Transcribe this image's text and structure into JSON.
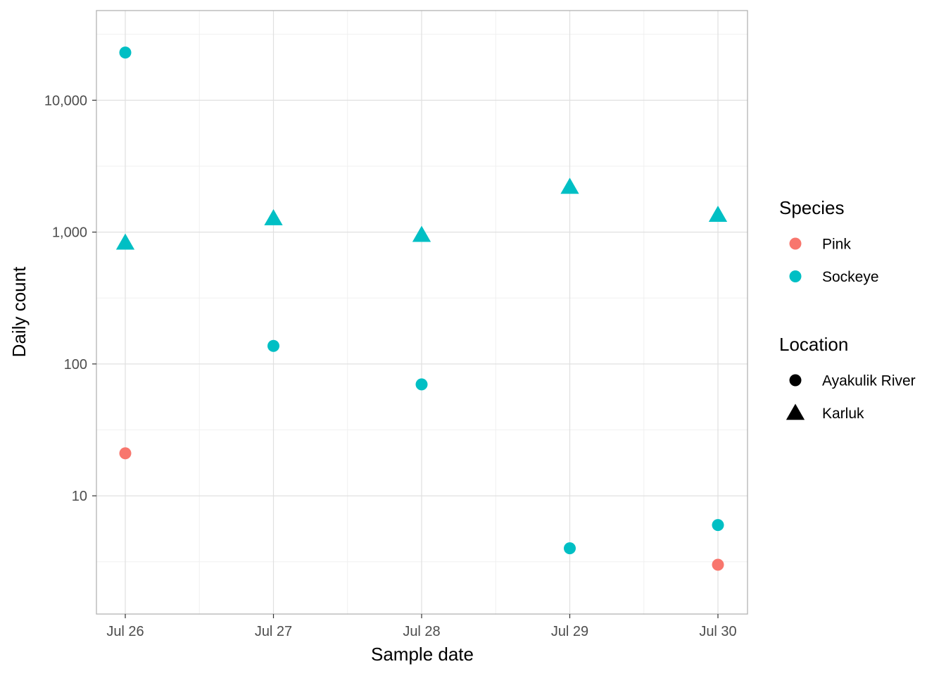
{
  "chart_data": {
    "type": "scatter",
    "title": "",
    "xlabel": "Sample date",
    "ylabel": "Daily count",
    "x_ticks": [
      "Jul 26",
      "Jul 27",
      "Jul 28",
      "Jul 29",
      "Jul 30"
    ],
    "xlim": [
      "2024-07-25 19:00",
      "2024-07-30 05:00"
    ],
    "y_scale": "log10",
    "y_ticks": [
      {
        "value": 10,
        "label": "10"
      },
      {
        "value": 100,
        "label": "100"
      },
      {
        "value": 1000,
        "label": "1,000"
      },
      {
        "value": 10000,
        "label": "10,000"
      }
    ],
    "ylim": [
      2,
      30000
    ],
    "grid": true,
    "legend_placement": "right",
    "colors": {
      "Pink": "#F8766D",
      "Sockeye": "#00BFC4"
    },
    "legends": [
      {
        "title": "Species",
        "entries": [
          {
            "label": "Pink",
            "color": "#F8766D",
            "shape": "circle"
          },
          {
            "label": "Sockeye",
            "color": "#00BFC4",
            "shape": "circle"
          }
        ]
      },
      {
        "title": "Location",
        "entries": [
          {
            "label": "Ayakulik River",
            "color": "#000000",
            "shape": "circle"
          },
          {
            "label": "Karluk",
            "color": "#000000",
            "shape": "triangle"
          }
        ]
      }
    ],
    "points": [
      {
        "date": "Jul 26",
        "species": "Sockeye",
        "location": "Ayakulik River",
        "value": 23000
      },
      {
        "date": "Jul 26",
        "species": "Sockeye",
        "location": "Karluk",
        "value": 830
      },
      {
        "date": "Jul 26",
        "species": "Pink",
        "location": "Ayakulik River",
        "value": 21
      },
      {
        "date": "Jul 27",
        "species": "Sockeye",
        "location": "Karluk",
        "value": 1270
      },
      {
        "date": "Jul 27",
        "species": "Sockeye",
        "location": "Ayakulik River",
        "value": 137
      },
      {
        "date": "Jul 28",
        "species": "Sockeye",
        "location": "Karluk",
        "value": 950
      },
      {
        "date": "Jul 28",
        "species": "Sockeye",
        "location": "Ayakulik River",
        "value": 70
      },
      {
        "date": "Jul 29",
        "species": "Sockeye",
        "location": "Karluk",
        "value": 2200
      },
      {
        "date": "Jul 29",
        "species": "Sockeye",
        "location": "Ayakulik River",
        "value": 4
      },
      {
        "date": "Jul 30",
        "species": "Sockeye",
        "location": "Karluk",
        "value": 1350
      },
      {
        "date": "Jul 30",
        "species": "Sockeye",
        "location": "Ayakulik River",
        "value": 6
      },
      {
        "date": "Jul 30",
        "species": "Pink",
        "location": "Ayakulik River",
        "value": 3
      }
    ]
  }
}
